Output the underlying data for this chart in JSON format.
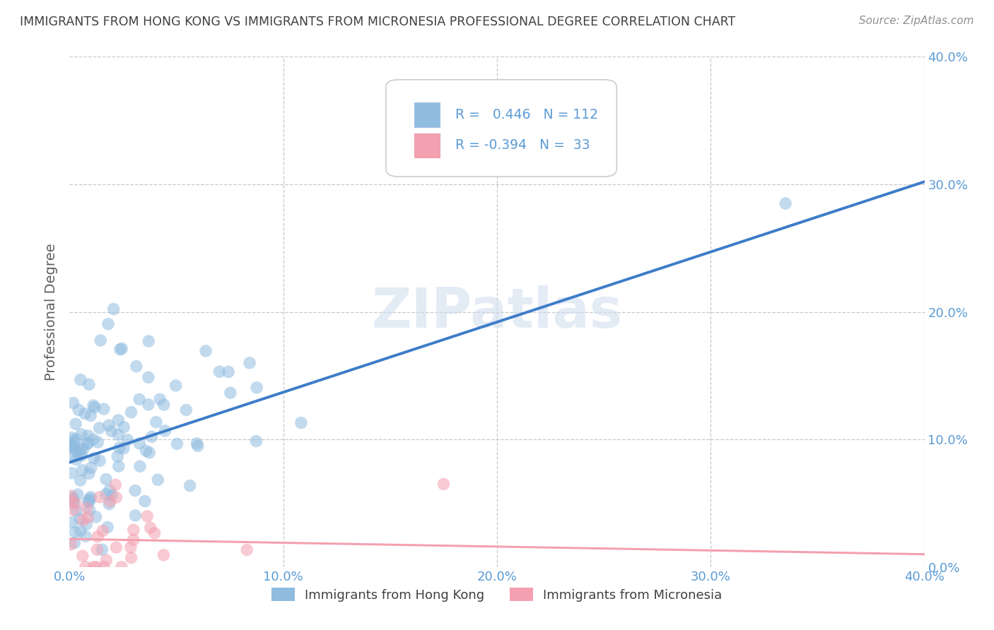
{
  "title": "IMMIGRANTS FROM HONG KONG VS IMMIGRANTS FROM MICRONESIA PROFESSIONAL DEGREE CORRELATION CHART",
  "source": "Source: ZipAtlas.com",
  "ylabel": "Professional Degree",
  "watermark": "ZIPatlas",
  "hk_label": "Immigrants from Hong Kong",
  "mic_label": "Immigrants from Micronesia",
  "xlim": [
    0.0,
    0.4
  ],
  "ylim": [
    0.0,
    0.4
  ],
  "x_ticks": [
    0.0,
    0.1,
    0.2,
    0.3,
    0.4
  ],
  "y_ticks": [
    0.0,
    0.1,
    0.2,
    0.3,
    0.4
  ],
  "hk_line_color": "#3d7cc9",
  "mic_line_color": "#f4a0b0",
  "background_color": "#ffffff",
  "grid_color": "#c8c8c8",
  "title_color": "#404040",
  "source_color": "#909090",
  "axis_label_color": "#606060",
  "tick_label_color": "#5b9bd5",
  "hk_scatter_color": "#90bce0",
  "mic_scatter_color": "#f4a0b0",
  "hk_R": 0.446,
  "hk_N": 112,
  "mic_R": -0.394,
  "mic_N": 33,
  "hk_line_x0": 0.0,
  "hk_line_y0": 0.082,
  "hk_line_x1": 0.4,
  "hk_line_y1": 0.302,
  "mic_line_x0": 0.0,
  "mic_line_y0": 0.022,
  "mic_line_x1": 0.4,
  "mic_line_y1": 0.01
}
